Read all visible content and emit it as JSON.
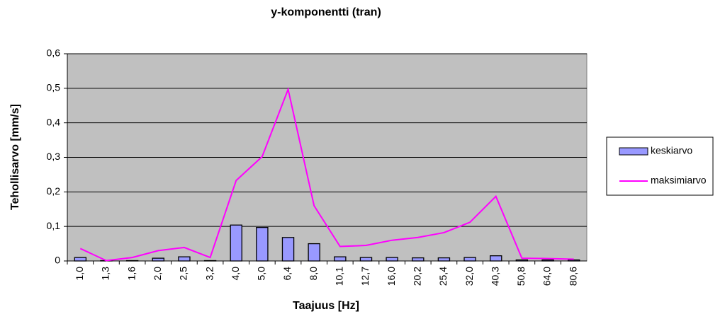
{
  "chart_data": {
    "type": "bar",
    "title": "y-komponentti (tran)",
    "x_label": "Taajuus [Hz]",
    "y_label": "Tehollisarvo [mm/s]",
    "categories": [
      "1,0",
      "1,3",
      "1,6",
      "2,0",
      "2,5",
      "3,2",
      "4,0",
      "5,0",
      "6,4",
      "8,0",
      "10,1",
      "12,7",
      "16,0",
      "20,2",
      "25,4",
      "32,0",
      "40,3",
      "50,8",
      "64,0",
      "80,6"
    ],
    "series": [
      {
        "name": "keskiarvo",
        "type": "bar",
        "color": "#9999ff",
        "values": [
          0.01,
          0.001,
          0.001,
          0.008,
          0.012,
          0.001,
          0.104,
          0.097,
          0.068,
          0.05,
          0.012,
          0.01,
          0.01,
          0.009,
          0.009,
          0.01,
          0.015,
          0.003,
          0.003,
          0.003
        ]
      },
      {
        "name": "maksimiarvo",
        "type": "line",
        "color": "#ff00ff",
        "values": [
          0.036,
          0.001,
          0.01,
          0.03,
          0.039,
          0.01,
          0.233,
          0.302,
          0.497,
          0.16,
          0.042,
          0.045,
          0.06,
          0.068,
          0.082,
          0.112,
          0.187,
          0.008,
          0.007,
          0.005
        ]
      }
    ],
    "ylim": [
      0,
      0.6
    ],
    "yticks": [
      0,
      {
        "value": 0.1,
        "label": "0,1"
      },
      {
        "value": 0.2,
        "label": "0,2"
      },
      {
        "value": 0.3,
        "label": "0,3"
      },
      {
        "value": 0.4,
        "label": "0,4"
      },
      {
        "value": 0.5,
        "label": "0,5"
      },
      {
        "value": 0.6,
        "label": "0,6"
      }
    ],
    "grid": true,
    "legend": "right"
  }
}
